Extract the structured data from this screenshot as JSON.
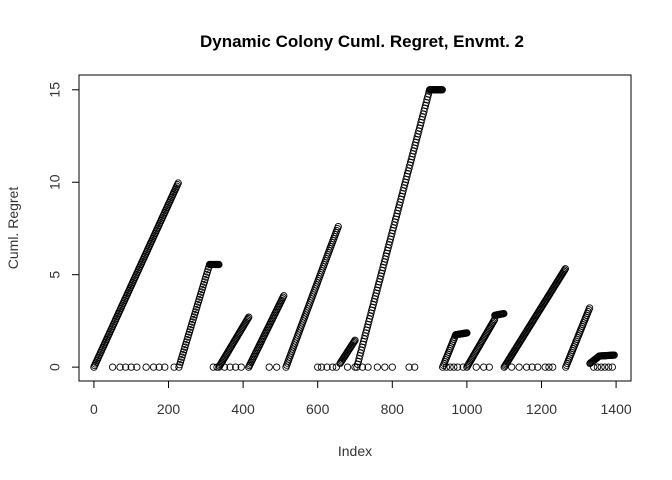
{
  "chart_data": {
    "type": "scatter",
    "title": "Dynamic Colony Cuml. Regret, Envmt. 2",
    "xlabel": "Index",
    "ylabel": "Cuml. Regret",
    "xlim": [
      -40,
      1440
    ],
    "ylim": [
      -0.75,
      15.8
    ],
    "x_ticks": [
      0,
      200,
      400,
      600,
      800,
      1000,
      1200,
      1400
    ],
    "y_ticks": [
      0,
      5,
      10,
      15
    ],
    "grid": false,
    "legend": "none",
    "marker": "open-circle",
    "segments": [
      {
        "x0": 0,
        "x1": 227,
        "y0": 0.0,
        "y1": 10.0
      },
      {
        "x0": 228,
        "x1": 310,
        "y0": 0.0,
        "y1": 5.55
      },
      {
        "x0": 311,
        "x1": 335,
        "y0": 5.55,
        "y1": 5.55
      },
      {
        "x0": 335,
        "x1": 415,
        "y0": 0.0,
        "y1": 2.7
      },
      {
        "x0": 415,
        "x1": 510,
        "y0": 0.0,
        "y1": 3.9
      },
      {
        "x0": 515,
        "x1": 655,
        "y0": 0.0,
        "y1": 7.6
      },
      {
        "x0": 660,
        "x1": 700,
        "y0": 0.2,
        "y1": 1.45
      },
      {
        "x0": 705,
        "x1": 900,
        "y0": 0.0,
        "y1": 15.0
      },
      {
        "x0": 900,
        "x1": 935,
        "y0": 15.0,
        "y1": 15.0
      },
      {
        "x0": 935,
        "x1": 970,
        "y0": 0.0,
        "y1": 1.75
      },
      {
        "x0": 970,
        "x1": 1000,
        "y0": 1.75,
        "y1": 1.85
      },
      {
        "x0": 1000,
        "x1": 1075,
        "y0": 0.0,
        "y1": 2.6
      },
      {
        "x0": 1075,
        "x1": 1100,
        "y0": 2.8,
        "y1": 2.9
      },
      {
        "x0": 1100,
        "x1": 1265,
        "y0": 0.0,
        "y1": 5.35
      },
      {
        "x0": 1265,
        "x1": 1330,
        "y0": 0.0,
        "y1": 3.25
      },
      {
        "x0": 1330,
        "x1": 1355,
        "y0": 0.2,
        "y1": 0.6
      },
      {
        "x0": 1355,
        "x1": 1395,
        "y0": 0.6,
        "y1": 0.65
      }
    ],
    "zero_points_x": [
      50,
      70,
      85,
      100,
      115,
      140,
      160,
      175,
      190,
      215,
      320,
      330,
      350,
      365,
      380,
      395,
      470,
      490,
      600,
      610,
      625,
      640,
      650,
      680,
      700,
      720,
      735,
      760,
      780,
      800,
      845,
      860,
      945,
      955,
      965,
      975,
      990,
      1025,
      1045,
      1060,
      1120,
      1140,
      1160,
      1175,
      1190,
      1210,
      1220,
      1230,
      1340,
      1350,
      1360,
      1370,
      1380,
      1390
    ]
  }
}
